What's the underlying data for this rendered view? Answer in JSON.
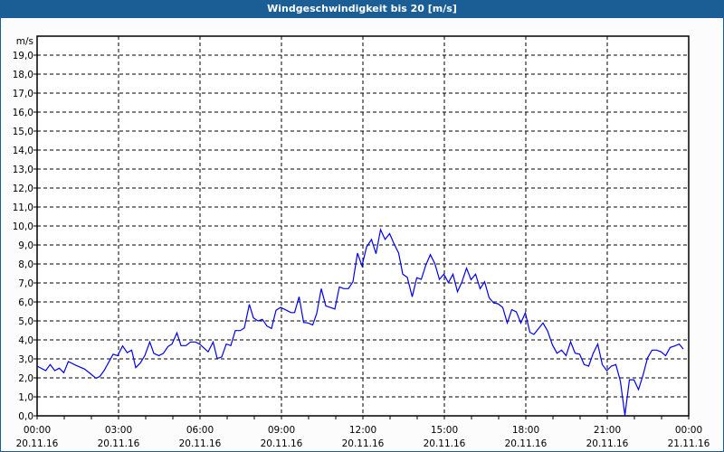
{
  "window": {
    "title": "Windgeschwindigkeit bis 20 [m/s]"
  },
  "chart_data": {
    "type": "line",
    "title": "Windgeschwindigkeit bis 20 [m/s]",
    "ylabel": "m/s",
    "xlabel": "",
    "ylim": [
      0,
      19
    ],
    "xlim_minutes": [
      0,
      1440
    ],
    "grid": true,
    "y_ticks": [
      "0,0",
      "1,0",
      "2,0",
      "3,0",
      "4,0",
      "5,0",
      "6,0",
      "7,0",
      "8,0",
      "9,0",
      "10,0",
      "11,0",
      "12,0",
      "13,0",
      "14,0",
      "15,0",
      "16,0",
      "17,0",
      "18,0",
      "19,0"
    ],
    "x_ticks": [
      {
        "time": "00:00",
        "date": "20.11.16"
      },
      {
        "time": "03:00",
        "date": "20.11.16"
      },
      {
        "time": "06:00",
        "date": "20.11.16"
      },
      {
        "time": "09:00",
        "date": "20.11.16"
      },
      {
        "time": "12:00",
        "date": "20.11.16"
      },
      {
        "time": "15:00",
        "date": "20.11.16"
      },
      {
        "time": "18:00",
        "date": "20.11.16"
      },
      {
        "time": "21:00",
        "date": "20.11.16"
      },
      {
        "time": "00:00",
        "date": "21.11.16"
      }
    ],
    "series": [
      {
        "name": "Windgeschwindigkeit",
        "color": "#0000ee",
        "x_minutes": [
          0,
          19,
          29,
          39,
          49,
          59,
          69,
          85,
          105,
          118,
          130,
          138,
          148,
          168,
          178,
          189,
          199,
          209,
          218,
          228,
          238,
          249,
          258,
          269,
          279,
          289,
          298,
          309,
          318,
          329,
          339,
          350,
          359,
          378,
          389,
          398,
          408,
          418,
          428,
          438,
          449,
          458,
          469,
          478,
          488,
          498,
          508,
          518,
          528,
          538,
          551,
          561,
          569,
          579,
          589,
          599,
          609,
          618,
          628,
          638,
          648,
          658,
          668,
          678,
          688,
          698,
          708,
          718,
          728,
          739,
          749,
          759,
          769,
          779,
          789,
          799,
          808,
          818,
          829,
          839,
          849,
          859,
          869,
          879,
          889,
          899,
          909,
          919,
          929,
          939,
          949,
          959,
          969,
          979,
          989,
          999,
          1009,
          1019,
          1029,
          1039,
          1049,
          1059,
          1069,
          1079,
          1089,
          1098,
          1118,
          1128,
          1139,
          1149,
          1159,
          1169,
          1179,
          1189,
          1199,
          1209,
          1219,
          1229,
          1239,
          1249,
          1259,
          1269,
          1279,
          1289,
          1299,
          1309,
          1319,
          1329,
          1339,
          1349,
          1359,
          1369,
          1379,
          1389,
          1399,
          1409,
          1419,
          1428
        ],
        "values": [
          2.62,
          2.38,
          2.7,
          2.38,
          2.51,
          2.27,
          2.86,
          2.67,
          2.46,
          2.22,
          1.98,
          2.06,
          2.38,
          3.25,
          3.17,
          3.68,
          3.33,
          3.46,
          2.54,
          2.78,
          3.17,
          3.89,
          3.29,
          3.17,
          3.29,
          3.65,
          3.78,
          4.37,
          3.7,
          3.7,
          3.89,
          3.89,
          3.78,
          3.37,
          3.89,
          3.02,
          3.1,
          3.78,
          3.7,
          4.49,
          4.49,
          4.63,
          5.87,
          5.16,
          5.0,
          5.08,
          4.73,
          4.6,
          5.56,
          5.71,
          5.56,
          5.44,
          5.44,
          6.27,
          4.92,
          4.89,
          4.79,
          5.4,
          6.7,
          5.79,
          5.71,
          5.63,
          6.79,
          6.7,
          6.7,
          7.06,
          8.57,
          7.9,
          8.89,
          9.29,
          8.54,
          9.81,
          9.29,
          9.6,
          9.05,
          8.57,
          7.46,
          7.3,
          6.27,
          7.27,
          7.19,
          7.94,
          8.49,
          8.02,
          7.19,
          7.46,
          7.02,
          7.46,
          6.54,
          7.06,
          7.78,
          7.17,
          7.46,
          6.7,
          7.06,
          6.22,
          5.95,
          5.9,
          5.71,
          4.89,
          5.59,
          5.48,
          4.89,
          5.43,
          4.4,
          4.29,
          4.89,
          4.48,
          3.73,
          3.3,
          3.46,
          3.17,
          3.9,
          3.3,
          3.25,
          2.7,
          2.62,
          3.3,
          3.78,
          2.7,
          2.38,
          2.62,
          2.7,
          1.83,
          0.03,
          1.9,
          1.9,
          1.38,
          2.14,
          3.05,
          3.46,
          3.46,
          3.37,
          3.17,
          3.6,
          3.68,
          3.78,
          3.52
        ]
      }
    ]
  }
}
